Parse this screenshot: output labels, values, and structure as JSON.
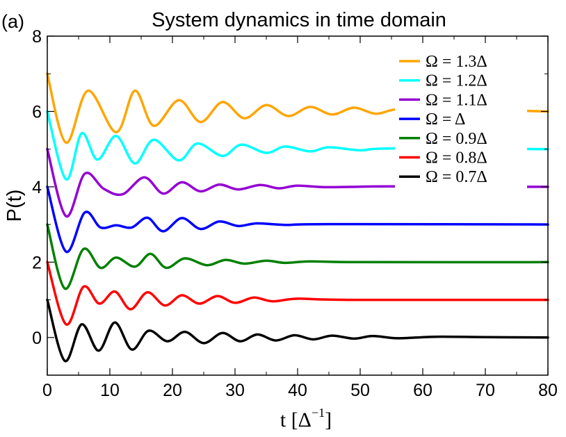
{
  "panel_label": "(a)",
  "chart_data": {
    "type": "line",
    "title": "System dynamics in time domain",
    "xlabel": "t [Δ",
    "xlabel_sup": "−1",
    "xlabel_close": "]",
    "ylabel": "P(t)",
    "xlim": [
      0,
      80
    ],
    "ylim": [
      -1,
      8
    ],
    "xticks": [
      0,
      10,
      20,
      30,
      40,
      50,
      60,
      70,
      80
    ],
    "yticks": [
      0,
      2,
      4,
      6,
      8
    ],
    "grid": false,
    "legend_position": "top-right",
    "series": [
      {
        "name": "Ω = 1.3Δ",
        "color": "#FFA500",
        "offset": 6,
        "x": [
          0,
          3,
          6.5,
          11,
          14,
          17,
          21,
          24.5,
          28,
          31.5,
          35,
          38.5,
          42,
          45.5,
          49,
          52.5,
          56,
          62,
          70,
          80
        ],
        "y": [
          7,
          5.17,
          6.55,
          5.45,
          6.55,
          5.62,
          6.3,
          5.72,
          6.25,
          5.82,
          6.17,
          5.88,
          6.12,
          5.92,
          6.1,
          5.94,
          6.06,
          5.97,
          6.03,
          6
        ]
      },
      {
        "name": "Ω = 1.2Δ",
        "color": "#00FFFF",
        "offset": 5,
        "x": [
          0,
          3,
          5.5,
          8,
          11,
          14,
          17,
          21,
          24,
          28,
          31,
          35,
          38,
          42,
          45,
          50,
          55,
          80
        ],
        "y": [
          6,
          4.2,
          5.42,
          4.72,
          5.35,
          4.62,
          5.25,
          4.7,
          5.15,
          4.82,
          5.12,
          4.9,
          5.07,
          4.94,
          5.05,
          4.97,
          5.02,
          5
        ]
      },
      {
        "name": "Ω = 1.1Δ",
        "color": "#9400D3",
        "offset": 4,
        "x": [
          0,
          3,
          6,
          9,
          12,
          15.5,
          18.5,
          21.5,
          24.5,
          27.5,
          30.5,
          34,
          37,
          40,
          45,
          55,
          80
        ],
        "y": [
          5,
          3.22,
          4.35,
          3.95,
          3.8,
          4.25,
          3.82,
          4.12,
          3.88,
          4.06,
          3.93,
          4.05,
          3.96,
          4.03,
          3.99,
          4.01,
          4
        ]
      },
      {
        "name": "Ω = Δ",
        "color": "#0000FF",
        "offset": 3,
        "x": [
          0,
          3,
          6,
          8.5,
          11,
          13.5,
          16,
          18.5,
          21.5,
          24.5,
          27.5,
          30.5,
          33.5,
          38,
          45,
          80
        ],
        "y": [
          4,
          2.28,
          3.32,
          2.92,
          2.98,
          2.92,
          3.18,
          2.82,
          3.17,
          2.88,
          3.08,
          2.96,
          3.03,
          2.99,
          3.01,
          3
        ]
      },
      {
        "name": "Ω = 0.9Δ",
        "color": "#008000",
        "offset": 2,
        "x": [
          0,
          2.8,
          5.8,
          8.5,
          11,
          14,
          16.5,
          19,
          22,
          25.5,
          28.5,
          31.5,
          35,
          38,
          42,
          50,
          80
        ],
        "y": [
          3,
          1.3,
          2.35,
          1.85,
          2.12,
          1.88,
          2.22,
          1.85,
          2.1,
          1.92,
          2.06,
          1.96,
          2.04,
          1.98,
          2.02,
          2,
          2
        ]
      },
      {
        "name": "Ω = 0.8Δ",
        "color": "#FF0000",
        "offset": 1,
        "x": [
          0,
          3,
          5.8,
          8.3,
          10.8,
          13.3,
          16,
          18.8,
          21.5,
          24.3,
          27.2,
          30,
          33,
          36,
          40,
          48,
          80
        ],
        "y": [
          2,
          0.35,
          1.35,
          0.9,
          1.22,
          0.75,
          1.2,
          0.85,
          1.12,
          0.9,
          1.1,
          0.92,
          1.06,
          0.96,
          1.03,
          1,
          1
        ]
      },
      {
        "name": "Ω = 0.7Δ",
        "color": "#000000",
        "offset": 0,
        "x": [
          0,
          2.8,
          5.5,
          8.2,
          10.8,
          13.5,
          16.2,
          19.2,
          22,
          25,
          28,
          30.8,
          33.6,
          36.5,
          39.5,
          42.5,
          45.5,
          49,
          52,
          56,
          62,
          70,
          80
        ],
        "y": [
          1,
          -0.62,
          0.35,
          -0.35,
          0.4,
          -0.32,
          0.18,
          -0.1,
          0.15,
          -0.15,
          0.12,
          -0.1,
          0.08,
          -0.08,
          0.06,
          -0.05,
          0.05,
          -0.03,
          0.04,
          -0.02,
          0.02,
          0.01,
          0
        ]
      }
    ]
  }
}
